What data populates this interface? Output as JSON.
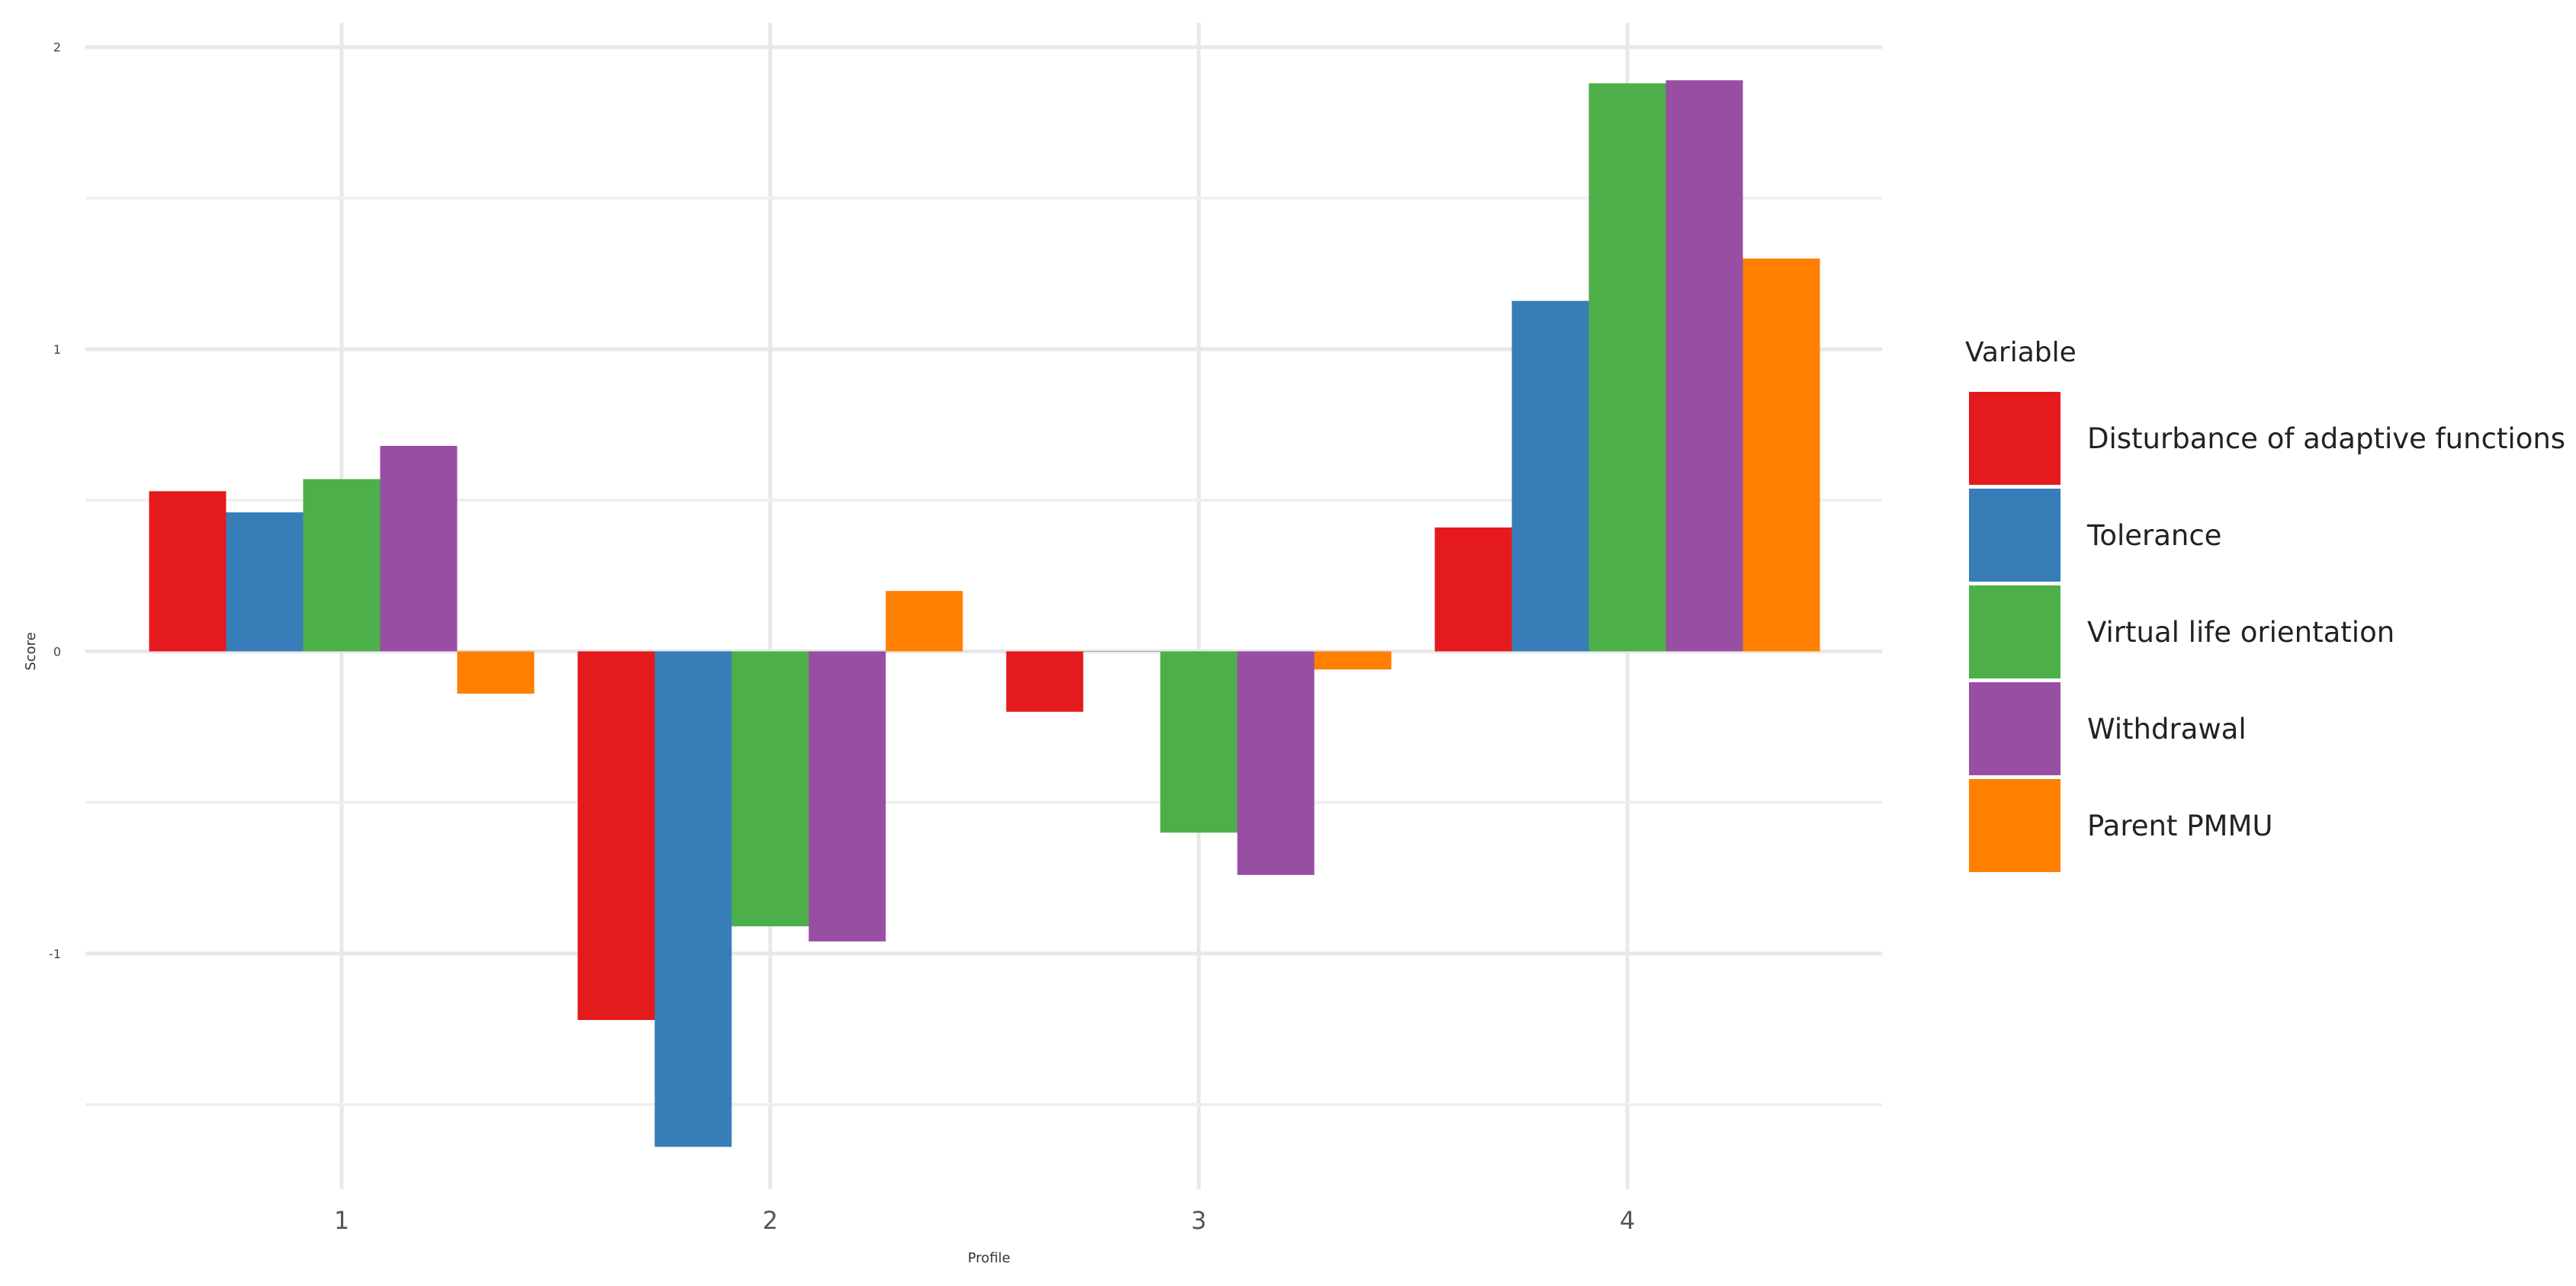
{
  "chart_data": {
    "type": "bar",
    "xlabel": "Profile",
    "ylabel": "Score",
    "categories": [
      "1",
      "2",
      "3",
      "4"
    ],
    "y_ticks": [
      -1,
      0,
      1,
      2
    ],
    "y_tick_labels": [
      "-1",
      "0",
      "1",
      "2"
    ],
    "ylim": [
      -1.78,
      2.08
    ],
    "grid": true,
    "legend_position": "right",
    "legend_title": "Variable",
    "series": [
      {
        "name": "Disturbance of adaptive functions",
        "color": "#E41A1C",
        "values": [
          0.53,
          -1.22,
          -0.2,
          0.41
        ]
      },
      {
        "name": "Tolerance",
        "color": "#377EB8",
        "values": [
          0.46,
          -1.64,
          0.0,
          1.16
        ]
      },
      {
        "name": "Virtual life orientation",
        "color": "#4DAF4A",
        "values": [
          0.57,
          -0.91,
          -0.6,
          1.88
        ]
      },
      {
        "name": "Withdrawal",
        "color": "#984EA3",
        "values": [
          0.68,
          -0.96,
          -0.74,
          1.89
        ]
      },
      {
        "name": "Parent PMMU",
        "color": "#FF7F00",
        "values": [
          -0.14,
          0.2,
          -0.06,
          1.3
        ]
      }
    ]
  }
}
